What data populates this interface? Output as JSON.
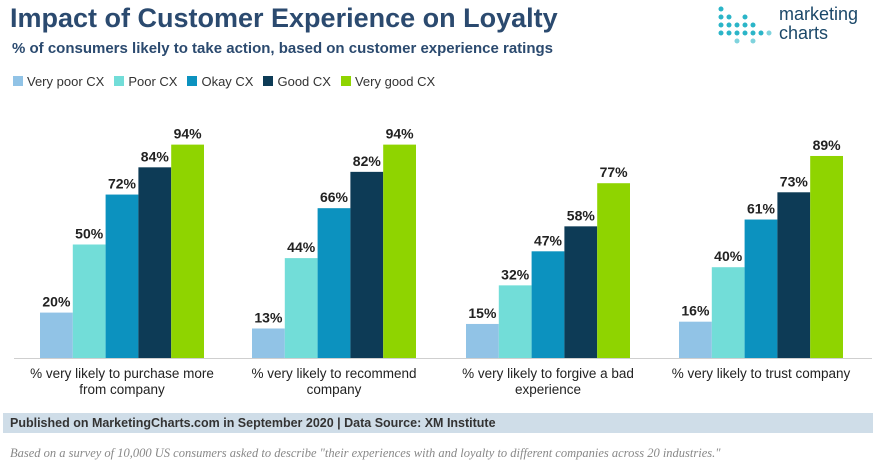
{
  "title": "Impact of Customer Experience on Loyalty",
  "subtitle": "% of consumers likely to take action, based on customer experience ratings",
  "logo": {
    "line1": "marketing",
    "line2": "charts"
  },
  "footer": {
    "published": "Published on MarketingCharts.com in September 2020 | Data Source: XM Institute",
    "note": "Based on a survey of 10,000 US consumers asked to describe \"their experiences with and loyalty to different companies across 20 industries.\""
  },
  "chart_data": {
    "type": "bar",
    "categories": [
      [
        "% very likely to purchase more",
        "from company"
      ],
      [
        "% very likely to recommend",
        "company"
      ],
      [
        "% very likely to forgive a bad",
        "experience"
      ],
      [
        "% very likely to trust company"
      ]
    ],
    "series": [
      {
        "name": "Very poor CX",
        "color": "#91c3e6",
        "values": [
          20,
          13,
          15,
          16
        ]
      },
      {
        "name": "Poor CX",
        "color": "#72ddd8",
        "values": [
          50,
          44,
          32,
          40
        ]
      },
      {
        "name": "Okay CX",
        "color": "#0c92bf",
        "values": [
          72,
          66,
          47,
          61
        ]
      },
      {
        "name": "Good CX",
        "color": "#0d3b56",
        "values": [
          84,
          82,
          58,
          73
        ]
      },
      {
        "name": "Very good CX",
        "color": "#8fd400",
        "values": [
          94,
          94,
          77,
          89
        ]
      }
    ],
    "value_suffix": "%",
    "ylim": [
      0,
      100
    ],
    "legend": "top-left",
    "grid": false
  }
}
